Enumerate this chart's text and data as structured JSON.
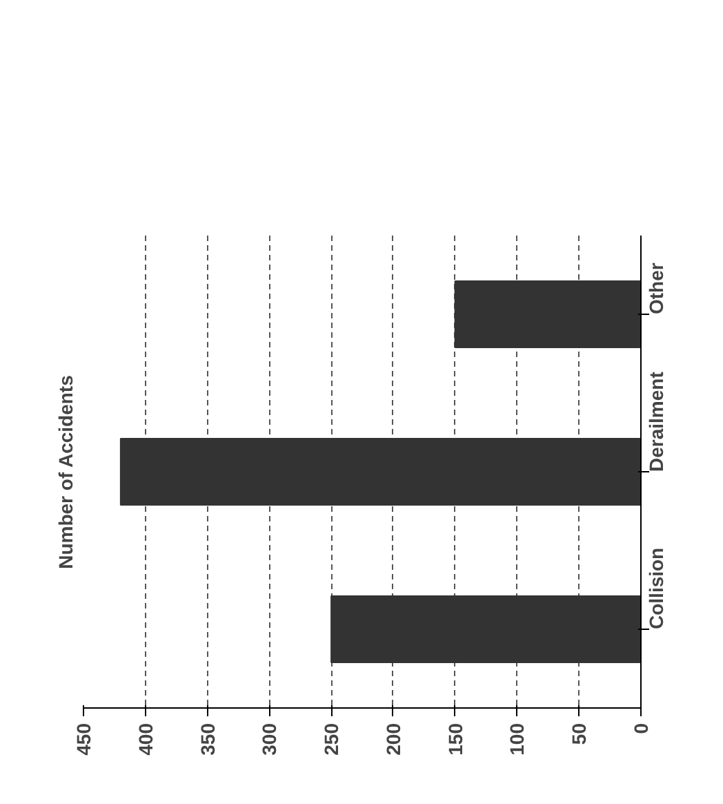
{
  "chart_data": {
    "type": "bar",
    "orientation": "horizontal",
    "title": "Number of Accidents",
    "categories": [
      "Other",
      "Derailment",
      "Collision"
    ],
    "values": [
      150,
      420,
      250
    ],
    "color": "#333333",
    "xlim": [
      450,
      0
    ],
    "xticks": [
      450,
      400,
      350,
      300,
      250,
      200,
      150,
      100,
      50,
      0
    ],
    "grid": "x"
  }
}
